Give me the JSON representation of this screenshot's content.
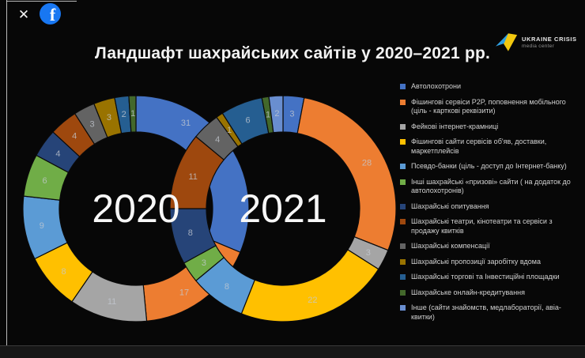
{
  "viewer": {
    "close_glyph": "✕",
    "facebook_glyph": "f"
  },
  "slide": {
    "title": "Ландшафт шахрайських сайтів у 2020–2021 рр.",
    "logo": {
      "line1": "UKRAINE CRISIS",
      "line2": "media center"
    }
  },
  "chart_data": {
    "type": "pie",
    "variant": "double-donut-overlapping",
    "title": "Ландшафт шахрайських сайтів у 2020–2021 рр.",
    "legend_position": "right",
    "background": "#070707",
    "categories": [
      "Автолохотрони",
      "Фішингові сервіси P2P, поповнення мобільного (ціль - карткові реквізити)",
      "Фейкові інтернет-крамниці",
      "Фішингові сайти сервісів об'яв, доставки, маркетплейсів",
      "Псевдо-банки (ціль - доступ до Інтернет-банку)",
      "Інші шахрайські «призові» сайти ( на додаток до автолохотронів)",
      "Шахрайські опитування",
      "Шахрайські театри, кінотеатри та сервіси з продажу квитків",
      "Шахрайські компенсації",
      "Шахрайські пропозиції заробітку вдома",
      "Шахрайські торгові та Інвестиційні площадки",
      "Шахрайське онлайн-кредитування",
      "Інше (сайти знайомств, медлабораторії, авіа-квитки)"
    ],
    "colors": [
      "#4472C4",
      "#ED7D31",
      "#A5A5A5",
      "#FFC000",
      "#5B9BD5",
      "#70AD47",
      "#264478",
      "#9E480E",
      "#636363",
      "#997300",
      "#255E91",
      "#43682B",
      "#698ED0"
    ],
    "series": [
      {
        "name": "2020",
        "values": [
          31,
          17,
          11,
          8,
          9,
          6,
          4,
          4,
          3,
          3,
          2,
          1,
          0
        ]
      },
      {
        "name": "2021",
        "values": [
          3,
          28,
          3,
          22,
          8,
          3,
          8,
          11,
          4,
          1,
          6,
          1,
          2
        ]
      }
    ]
  }
}
